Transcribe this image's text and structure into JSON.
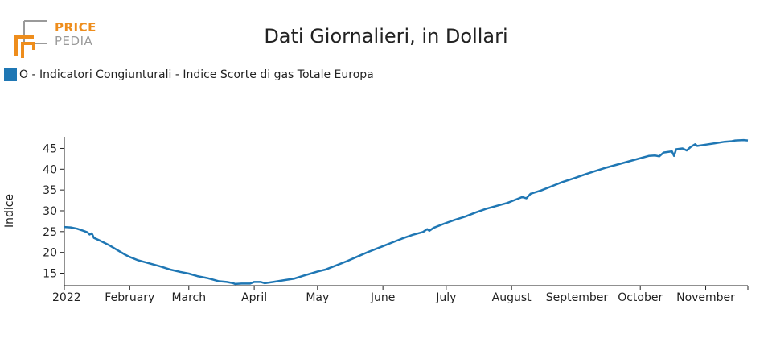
{
  "header": {
    "logo_line1": "PRICE",
    "logo_line2": "PEDIA",
    "title": "Dati Giornalieri, in Dollari"
  },
  "legend": {
    "label": "O - Indicatori Congiunturali - Indice Scorte di gas Totale Europa",
    "color": "#1f77b4"
  },
  "colors": {
    "line": "#1f77b4",
    "logo_orange": "#ee8d1c",
    "logo_gray": "#9a9a9a"
  },
  "chart_data": {
    "type": "line",
    "title": "Dati Giornalieri, in Dollari",
    "xlabel": "",
    "ylabel": "Indice",
    "x_tick_labels": [
      "2022",
      "February",
      "March",
      "April",
      "May",
      "June",
      "July",
      "August",
      "September",
      "October",
      "November"
    ],
    "x_tick_dates": [
      "2022-01-01",
      "2022-02-01",
      "2022-03-01",
      "2022-04-01",
      "2022-05-01",
      "2022-06-01",
      "2022-07-01",
      "2022-08-01",
      "2022-09-01",
      "2022-10-01",
      "2022-11-01"
    ],
    "xlim": [
      "2022-01-01",
      "2022-11-21"
    ],
    "y_ticks": [
      15,
      20,
      25,
      30,
      35,
      40,
      45
    ],
    "ylim": [
      12,
      47.8
    ],
    "series": [
      {
        "name": "O - Indicatori Congiunturali - Indice Scorte di gas Totale Europa",
        "points": [
          [
            "2022-01-01",
            26.1
          ],
          [
            "2022-01-04",
            26.0
          ],
          [
            "2022-01-07",
            25.7
          ],
          [
            "2022-01-10",
            25.2
          ],
          [
            "2022-01-12",
            24.8
          ],
          [
            "2022-01-13",
            24.3
          ],
          [
            "2022-01-14",
            24.6
          ],
          [
            "2022-01-15",
            23.5
          ],
          [
            "2022-01-18",
            22.8
          ],
          [
            "2022-01-22",
            21.8
          ],
          [
            "2022-01-26",
            20.6
          ],
          [
            "2022-01-30",
            19.4
          ],
          [
            "2022-02-01",
            18.9
          ],
          [
            "2022-02-05",
            18.1
          ],
          [
            "2022-02-10",
            17.4
          ],
          [
            "2022-02-15",
            16.7
          ],
          [
            "2022-02-20",
            15.9
          ],
          [
            "2022-02-25",
            15.3
          ],
          [
            "2022-03-01",
            14.9
          ],
          [
            "2022-03-05",
            14.3
          ],
          [
            "2022-03-10",
            13.8
          ],
          [
            "2022-03-15",
            13.1
          ],
          [
            "2022-03-19",
            12.9
          ],
          [
            "2022-03-22",
            12.6
          ],
          [
            "2022-03-23",
            12.4
          ],
          [
            "2022-03-26",
            12.5
          ],
          [
            "2022-03-30",
            12.5
          ],
          [
            "2022-04-01",
            12.9
          ],
          [
            "2022-04-04",
            12.9
          ],
          [
            "2022-04-06",
            12.6
          ],
          [
            "2022-04-10",
            12.9
          ],
          [
            "2022-04-15",
            13.3
          ],
          [
            "2022-04-20",
            13.7
          ],
          [
            "2022-04-25",
            14.5
          ],
          [
            "2022-05-01",
            15.4
          ],
          [
            "2022-05-05",
            15.9
          ],
          [
            "2022-05-10",
            16.9
          ],
          [
            "2022-05-15",
            17.9
          ],
          [
            "2022-05-20",
            19.0
          ],
          [
            "2022-05-25",
            20.1
          ],
          [
            "2022-06-01",
            21.5
          ],
          [
            "2022-06-05",
            22.3
          ],
          [
            "2022-06-10",
            23.3
          ],
          [
            "2022-06-15",
            24.2
          ],
          [
            "2022-06-20",
            24.9
          ],
          [
            "2022-06-22",
            25.6
          ],
          [
            "2022-06-23",
            25.2
          ],
          [
            "2022-06-25",
            25.9
          ],
          [
            "2022-06-30",
            26.9
          ],
          [
            "2022-07-05",
            27.8
          ],
          [
            "2022-07-10",
            28.6
          ],
          [
            "2022-07-15",
            29.6
          ],
          [
            "2022-07-20",
            30.5
          ],
          [
            "2022-07-25",
            31.2
          ],
          [
            "2022-07-30",
            31.9
          ],
          [
            "2022-08-04",
            32.9
          ],
          [
            "2022-08-06",
            33.3
          ],
          [
            "2022-08-08",
            33.0
          ],
          [
            "2022-08-10",
            34.1
          ],
          [
            "2022-08-15",
            34.9
          ],
          [
            "2022-08-20",
            35.9
          ],
          [
            "2022-08-25",
            36.9
          ],
          [
            "2022-08-31",
            37.9
          ],
          [
            "2022-09-05",
            38.8
          ],
          [
            "2022-09-10",
            39.6
          ],
          [
            "2022-09-15",
            40.4
          ],
          [
            "2022-09-20",
            41.1
          ],
          [
            "2022-09-25",
            41.8
          ],
          [
            "2022-09-30",
            42.5
          ],
          [
            "2022-10-05",
            43.2
          ],
          [
            "2022-10-08",
            43.3
          ],
          [
            "2022-10-10",
            43.1
          ],
          [
            "2022-10-12",
            44.0
          ],
          [
            "2022-10-16",
            44.3
          ],
          [
            "2022-10-17",
            43.2
          ],
          [
            "2022-10-18",
            44.8
          ],
          [
            "2022-10-21",
            45.0
          ],
          [
            "2022-10-23",
            44.5
          ],
          [
            "2022-10-25",
            45.4
          ],
          [
            "2022-10-27",
            46.0
          ],
          [
            "2022-10-28",
            45.6
          ],
          [
            "2022-11-01",
            45.9
          ],
          [
            "2022-11-05",
            46.2
          ],
          [
            "2022-11-10",
            46.6
          ],
          [
            "2022-11-13",
            46.7
          ],
          [
            "2022-11-15",
            46.9
          ],
          [
            "2022-11-19",
            47.0
          ],
          [
            "2022-11-21",
            46.9
          ]
        ]
      }
    ]
  }
}
